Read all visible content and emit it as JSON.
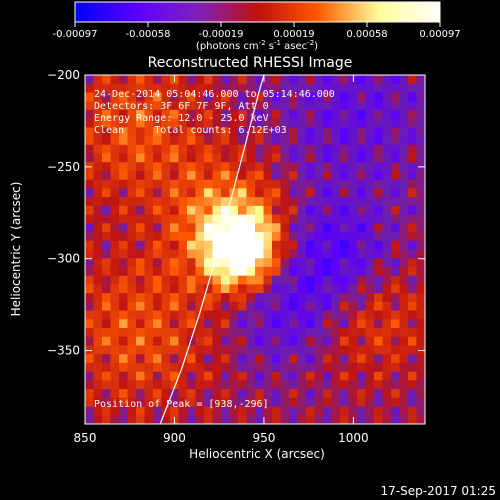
{
  "chart_data": {
    "type": "heatmap",
    "title": "Reconstructed RHESSI Image",
    "xlabel": "Heliocentric X (arcsec)",
    "ylabel": "Heliocentric Y (arcsec)",
    "xlim": [
      850,
      1040
    ],
    "ylim": [
      -390,
      -200
    ],
    "x_ticks": [
      850,
      900,
      950,
      1000
    ],
    "y_ticks": [
      -200,
      -250,
      -300,
      -350
    ],
    "colorbar": {
      "ticks": [
        "-0.00097",
        "-0.00058",
        "-0.00019",
        "0.00019",
        "0.00058",
        "0.00097"
      ],
      "range": [
        -0.00097,
        0.00097
      ],
      "units_prefix": "(photons cm",
      "units_exp1": "-2",
      "units_mid": " s",
      "units_exp2": "-1",
      "units_mid2": " asec",
      "units_exp3": "-2",
      "units_suffix": ")",
      "colors": [
        "#0000ff",
        "#5a00ff",
        "#7f20c0",
        "#c01010",
        "#ff5a00",
        "#ffff9a",
        "#ffffff"
      ]
    },
    "annotations": [
      "24-Dec-2014 05:04:46.000 to 05:14:46.000",
      "Detectors: 3F 6F 7F 9F, Att 0",
      "Energy Range: 12.0 - 25.0 keV",
      "Clean     Total counts: 6.12E+03"
    ],
    "peak_label": "Position of Peak = [938,-296]",
    "peak": [
      938,
      -296
    ],
    "peak_value": 0.00097,
    "limb_curve": [
      [
        892,
        -390
      ],
      [
        904,
        -360
      ],
      [
        914,
        -330
      ],
      [
        923,
        -300
      ],
      [
        931,
        -270
      ],
      [
        939,
        -240
      ],
      [
        947,
        -210
      ],
      [
        950,
        -200
      ]
    ],
    "blobs": [
      {
        "cx": 938,
        "cy": -296,
        "s": 14,
        "a": 1.0
      },
      {
        "cx": 930,
        "cy": -280,
        "s": 22,
        "a": 0.55
      },
      {
        "cx": 880,
        "cy": -230,
        "s": 28,
        "a": 0.35
      },
      {
        "cx": 880,
        "cy": -340,
        "s": 30,
        "a": 0.35
      },
      {
        "cx": 1010,
        "cy": -330,
        "s": 24,
        "a": 0.3
      },
      {
        "cx": 990,
        "cy": -300,
        "s": 22,
        "a": -0.45
      },
      {
        "cx": 960,
        "cy": -330,
        "s": 20,
        "a": -0.3
      },
      {
        "cx": 1000,
        "cy": -220,
        "s": 30,
        "a": -0.25
      }
    ],
    "footer_date": "17-Sep-2017 01:25"
  }
}
